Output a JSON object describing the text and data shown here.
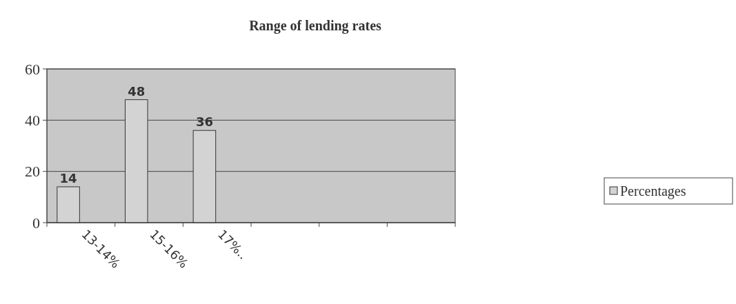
{
  "chart_data": {
    "type": "bar",
    "title": "Range of lending rates",
    "categories": [
      "13-14%",
      "15-16%",
      "17%..",
      null,
      null,
      null
    ],
    "series": [
      {
        "name": "Percentages",
        "color": "#d3d3d3",
        "values": [
          14,
          48,
          36,
          null,
          null,
          null
        ]
      }
    ],
    "ylim": [
      0,
      60
    ],
    "yticks": [
      0,
      20,
      40,
      60
    ],
    "grid": "y",
    "legend": "right",
    "data_labels": true
  }
}
